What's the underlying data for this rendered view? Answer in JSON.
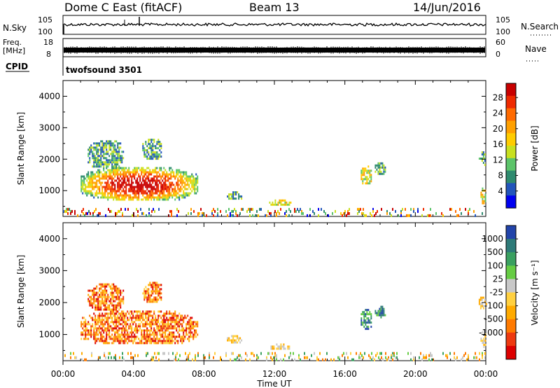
{
  "header": {
    "title": "Dome C East (fitACF)",
    "beam": "Beam 13",
    "date": "14/Jun/2016"
  },
  "strip_nsky": {
    "label": "N.Sky",
    "right_label": "N.Search",
    "ticks_left": [
      "10^5",
      "10^0"
    ],
    "ticks_right": [
      "10^5",
      "10^0"
    ]
  },
  "strip_freq": {
    "label_line1": "Freq.",
    "label_line2": "[MHz]",
    "ticks_left": [
      "18",
      "8"
    ],
    "ticks_right": [
      "60",
      "0"
    ],
    "right_label": "Nave"
  },
  "cpid": {
    "label": "CPID",
    "value": "twofsound 3501"
  },
  "time_axis": {
    "label": "Time UT",
    "ticks": [
      "00:00",
      "04:00",
      "08:00",
      "12:00",
      "16:00",
      "20:00",
      "00:00"
    ]
  },
  "chart_data": [
    {
      "type": "heatmap",
      "quantity": "Power",
      "xlabel": "Time UT",
      "ylabel": "Slant Range [km]",
      "xlim": [
        0,
        24
      ],
      "ylim": [
        180,
        4500
      ],
      "yticks": [
        "1000",
        "2000",
        "3000",
        "4000"
      ],
      "colorbar": {
        "label": "Power [dB]",
        "ticks": [
          "4",
          "8",
          "12",
          "16",
          "20",
          "24",
          "28"
        ],
        "colors": [
          "#0000f0",
          "#2255bb",
          "#2e8a6e",
          "#5cc46a",
          "#c8e020",
          "#ffcc00",
          "#ffa000",
          "#ff6a00",
          "#ee2a00",
          "#c80000"
        ]
      },
      "regions": [
        {
          "t": [
            1.0,
            7.6
          ],
          "r": [
            700,
            1750
          ],
          "level": "high"
        },
        {
          "t": [
            1.4,
            3.4
          ],
          "r": [
            1750,
            2600
          ],
          "level": "low"
        },
        {
          "t": [
            4.5,
            5.6
          ],
          "r": [
            2000,
            2650
          ],
          "level": "low"
        },
        {
          "t": [
            9.3,
            10.1
          ],
          "r": [
            720,
            980
          ],
          "level": "low"
        },
        {
          "t": [
            11.7,
            12.9
          ],
          "r": [
            560,
            720
          ],
          "level": "mid"
        },
        {
          "t": [
            16.9,
            17.5
          ],
          "r": [
            1200,
            1800
          ],
          "level": "mid"
        },
        {
          "t": [
            17.7,
            18.3
          ],
          "r": [
            1550,
            1900
          ],
          "level": "low"
        },
        {
          "t": [
            23.6,
            24.0
          ],
          "r": [
            1800,
            2250
          ],
          "level": "low"
        },
        {
          "t": [
            23.7,
            24.0
          ],
          "r": [
            600,
            1100
          ],
          "level": "mid"
        },
        {
          "t": [
            0.0,
            24.0
          ],
          "r": [
            200,
            450
          ],
          "level": "sparse"
        }
      ]
    },
    {
      "type": "heatmap",
      "quantity": "Velocity",
      "xlabel": "Time UT",
      "ylabel": "Slant Range [km]",
      "xlim": [
        0,
        24
      ],
      "ylim": [
        180,
        4500
      ],
      "yticks": [
        "1000",
        "2000",
        "3000",
        "4000"
      ],
      "colorbar": {
        "label": "Velocity [m s^-1]",
        "ticks": [
          "1000",
          "500",
          "100",
          "25",
          "-25",
          "-100",
          "-500",
          "-1000"
        ],
        "colors": [
          "#2244aa",
          "#2e7a78",
          "#3aa060",
          "#66cc44",
          "#c8c8c8",
          "#ffd040",
          "#ffaa00",
          "#ff7a00",
          "#ee3a10",
          "#dd0000"
        ]
      },
      "regions": [
        {
          "t": [
            1.0,
            7.6
          ],
          "r": [
            700,
            1750
          ],
          "level": "negative"
        },
        {
          "t": [
            1.4,
            3.4
          ],
          "r": [
            1750,
            2600
          ],
          "level": "negative"
        },
        {
          "t": [
            4.5,
            5.6
          ],
          "r": [
            2000,
            2650
          ],
          "level": "negative"
        },
        {
          "t": [
            9.3,
            10.1
          ],
          "r": [
            720,
            980
          ],
          "level": "slight"
        },
        {
          "t": [
            11.7,
            12.9
          ],
          "r": [
            560,
            720
          ],
          "level": "slight"
        },
        {
          "t": [
            16.9,
            17.5
          ],
          "r": [
            1200,
            1800
          ],
          "level": "positive"
        },
        {
          "t": [
            17.7,
            18.3
          ],
          "r": [
            1550,
            1900
          ],
          "level": "positive"
        },
        {
          "t": [
            23.6,
            24.0
          ],
          "r": [
            1800,
            2250
          ],
          "level": "slight"
        },
        {
          "t": [
            23.7,
            24.0
          ],
          "r": [
            600,
            1100
          ],
          "level": "slight"
        },
        {
          "t": [
            0.0,
            24.0
          ],
          "r": [
            200,
            450
          ],
          "level": "sparse"
        }
      ]
    }
  ]
}
